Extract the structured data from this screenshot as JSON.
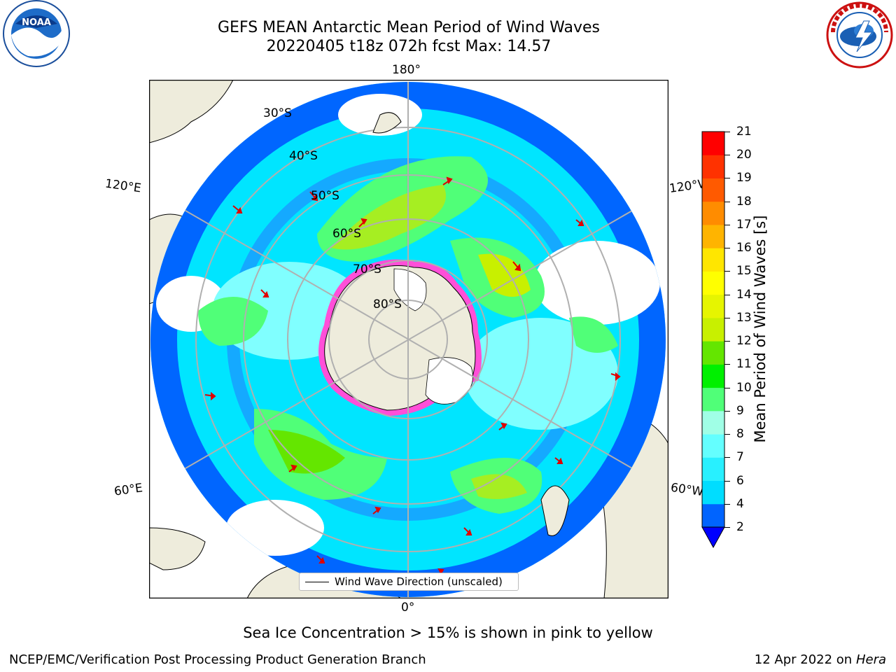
{
  "header": {
    "title_line1": "GEFS MEAN Antarctic Mean Period of Wind Waves",
    "title_line2": "20220405 t18z 072h fcst   Max: 14.57"
  },
  "logos": {
    "left": {
      "name": "noaa-logo",
      "text": "NOAA",
      "ring_text": "NATIONAL OCEANIC AND ATMOSPHERIC ADMINISTRATION · U.S. DEPARTMENT OF COMMERCE"
    },
    "right": {
      "name": "nws-logo",
      "ring_text": "NATIONAL WEATHER SERVICE"
    }
  },
  "map": {
    "projection": "south-polar-stereographic",
    "longitude_labels": [
      "180°",
      "120°E",
      "120°W",
      "60°E",
      "60°W",
      "0°"
    ],
    "latitude_labels": [
      "30°S",
      "40°S",
      "50°S",
      "60°S",
      "70°S",
      "80°S"
    ],
    "colors": {
      "land": "#eeecdc",
      "sea_ice": "#ff66cc",
      "grid": "#b0b0b0",
      "arrow": "#e00000"
    },
    "legend": "Wind Wave Direction (unscaled)"
  },
  "colorbar": {
    "label": "Mean Period of Wind Waves [s]",
    "ticks": [
      "2",
      "4",
      "6",
      "7",
      "8",
      "9",
      "10",
      "11",
      "12",
      "13",
      "14",
      "15",
      "16",
      "17",
      "18",
      "19",
      "20",
      "21"
    ],
    "colors": [
      "#0064ff",
      "#00ddff",
      "#28f0ff",
      "#64ffff",
      "#a0ffe6",
      "#50ff78",
      "#00f000",
      "#64e600",
      "#c8f000",
      "#e6f500",
      "#ffff00",
      "#ffe600",
      "#ffb400",
      "#ff8c00",
      "#ff5a00",
      "#ff3200",
      "#ff0000"
    ],
    "extend_color": "#0000ff"
  },
  "note": "Sea Ice Concentration > 15% is shown in pink to yellow",
  "footer": {
    "left": "NCEP/EMC/Verification Post Processing Product Generation Branch",
    "right_date": "12 Apr 2022 on ",
    "right_machine": "Hera"
  }
}
